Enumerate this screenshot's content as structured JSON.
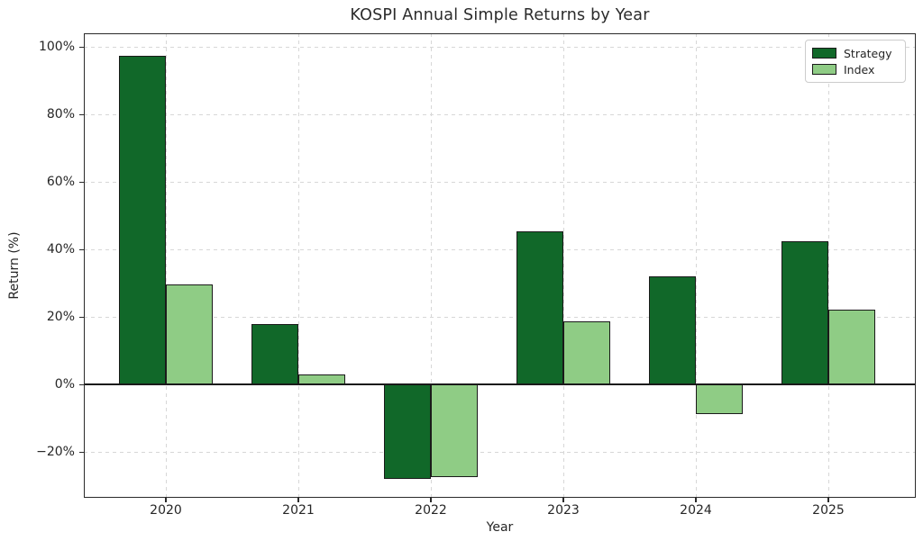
{
  "chart_data": {
    "type": "bar",
    "title": "KOSPI Annual Simple Returns by Year",
    "xlabel": "Year",
    "ylabel": "Return (%)",
    "categories": [
      "2020",
      "2021",
      "2022",
      "2023",
      "2024",
      "2025"
    ],
    "series": [
      {
        "name": "Strategy",
        "color": "#116829",
        "values": [
          97.5,
          18.0,
          -28.0,
          45.5,
          32.0,
          42.5
        ]
      },
      {
        "name": "Index",
        "color": "#8fcc85",
        "values": [
          29.8,
          3.0,
          -27.3,
          18.7,
          -8.8,
          22.3
        ]
      }
    ],
    "y_ticks": [
      {
        "label": "100%",
        "value": 100
      },
      {
        "label": "80%",
        "value": 80
      },
      {
        "label": "60%",
        "value": 60
      },
      {
        "label": "40%",
        "value": 40
      },
      {
        "label": "20%",
        "value": 20
      },
      {
        "label": "0%",
        "value": 0
      },
      {
        "label": "−20%",
        "value": -20
      }
    ],
    "ylim": [
      -33.5,
      104.1
    ],
    "grid": true,
    "grid_style": "dashed",
    "legend_position": "upper right",
    "bar_edge_color": "#1a1a1a",
    "zero_line": true
  }
}
